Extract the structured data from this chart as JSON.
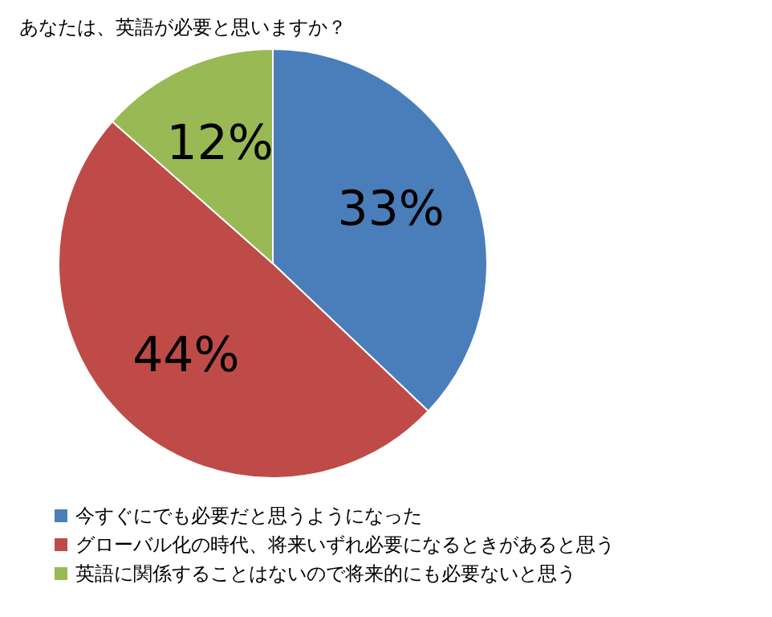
{
  "chart_data": {
    "type": "pie",
    "title": "あなたは、英語が必要と思いますか？",
    "categories": [
      "今すぐにでも必要だと思うようになった",
      "グローバル化の時代、将来いずれ必要になるときがあると思う",
      "英語に関係することはないので将来的にも必要ないと思う"
    ],
    "values": [
      33,
      44,
      12
    ],
    "value_labels": [
      "33%",
      "44%",
      "12%"
    ],
    "colors": [
      "#4a7ebb",
      "#be4b48",
      "#98b954"
    ],
    "legend": "bottom"
  }
}
